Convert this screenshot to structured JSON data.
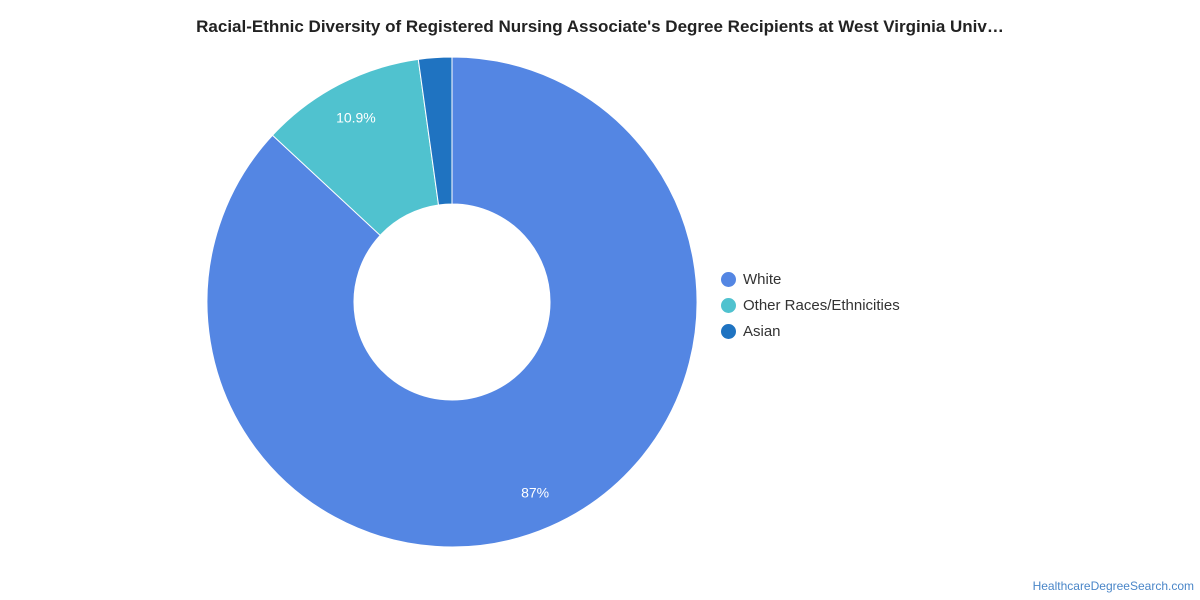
{
  "title": "Racial-Ethnic Diversity of Registered Nursing Associate's Degree Recipients at West Virginia Univ…",
  "source": "HealthcareDegreeSearch.com",
  "chart_data": {
    "type": "pie",
    "donut": true,
    "title": "Racial-Ethnic Diversity of Registered Nursing Associate's Degree Recipients at West Virginia Univ…",
    "legend_position": "right",
    "slices": [
      {
        "name": "White",
        "value": 87.0,
        "label": "87%",
        "color": "#5486e3"
      },
      {
        "name": "Other Races/Ethnicities",
        "value": 10.9,
        "label": "10.9%",
        "color": "#50c2cf"
      },
      {
        "name": "Asian",
        "value": 2.2,
        "label": "",
        "color": "#1f73c1"
      }
    ]
  }
}
